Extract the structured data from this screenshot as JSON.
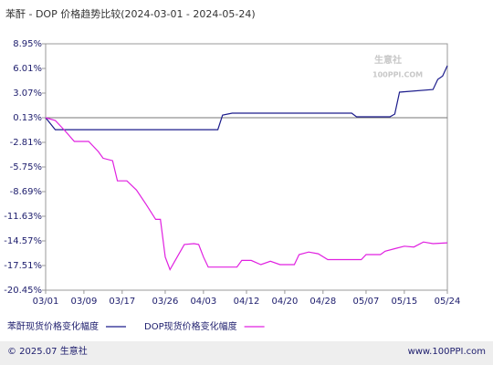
{
  "chart_data": {
    "type": "line",
    "title": "苯酐 - DOP 价格趋势比较(2024-03-01 - 2024-05-24)",
    "watermark": [
      "生意社",
      "100PPI.COM"
    ],
    "footer_left": "© 2025.07 生意社",
    "footer_right": "www.100PPI.com",
    "ylim": [
      -20.45,
      8.95
    ],
    "yticks": [
      {
        "value": 8.95,
        "label": "8.95%"
      },
      {
        "value": 6.01,
        "label": "6.01%"
      },
      {
        "value": 3.07,
        "label": "3.07%"
      },
      {
        "value": 0.13,
        "label": "0.13%"
      },
      {
        "value": -2.81,
        "label": "-2.81%"
      },
      {
        "value": -5.75,
        "label": "-5.75%"
      },
      {
        "value": -8.69,
        "label": "-8.69%"
      },
      {
        "value": -11.63,
        "label": "-11.63%"
      },
      {
        "value": -14.57,
        "label": "-14.57%"
      },
      {
        "value": -17.51,
        "label": "-17.51%"
      },
      {
        "value": -20.45,
        "label": "-20.45%"
      }
    ],
    "reference_line": 0.13,
    "xticks": [
      "03/01",
      "03/09",
      "03/17",
      "03/26",
      "04/03",
      "04/12",
      "04/20",
      "04/28",
      "05/07",
      "05/15",
      "05/24"
    ],
    "legend": "bottom",
    "series": [
      {
        "name": "苯酐现货价格变化幅度",
        "color": "#1c1c8c",
        "x": [
          "03/01",
          "03/03",
          "04/06",
          "04/07",
          "04/09",
          "04/16",
          "05/04",
          "05/05",
          "05/12",
          "05/13",
          "05/14",
          "05/21",
          "05/22",
          "05/23",
          "05/24"
        ],
        "values": [
          0.13,
          -1.3,
          -1.3,
          0.45,
          0.67,
          0.67,
          0.67,
          0.24,
          0.24,
          0.57,
          3.18,
          3.5,
          4.7,
          5.1,
          6.34
        ]
      },
      {
        "name": "DOP现货价格变化幅度",
        "color": "#e020e0",
        "x": [
          "03/01",
          "03/03",
          "03/05",
          "03/07",
          "03/10",
          "03/12",
          "03/13",
          "03/15",
          "03/16",
          "03/18",
          "03/20",
          "03/22",
          "03/24",
          "03/25",
          "03/26",
          "03/27",
          "03/28",
          "03/30",
          "04/01",
          "04/02",
          "04/03",
          "04/04",
          "04/10",
          "04/11",
          "04/13",
          "04/15",
          "04/17",
          "04/19",
          "04/22",
          "04/23",
          "04/25",
          "04/27",
          "04/29",
          "05/06",
          "05/07",
          "05/10",
          "05/11",
          "05/13",
          "05/15",
          "05/17",
          "05/19",
          "05/21",
          "05/24"
        ],
        "values": [
          0.13,
          -0.2,
          -1.4,
          -2.7,
          -2.7,
          -3.9,
          -4.7,
          -5.0,
          -7.4,
          -7.4,
          -8.5,
          -10.2,
          -12.0,
          -12.0,
          -16.5,
          -18.0,
          -17.0,
          -15.0,
          -14.9,
          -15.0,
          -16.5,
          -17.7,
          -17.7,
          -16.9,
          -16.9,
          -17.4,
          -17.0,
          -17.4,
          -17.4,
          -16.2,
          -15.9,
          -16.1,
          -16.8,
          -16.8,
          -16.2,
          -16.2,
          -15.8,
          -15.5,
          -15.2,
          -15.3,
          -14.7,
          -14.9,
          -14.8
        ]
      }
    ]
  }
}
